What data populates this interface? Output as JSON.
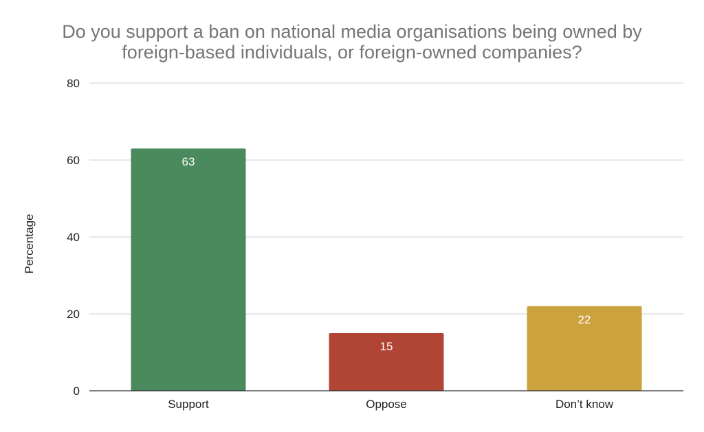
{
  "chart_data": {
    "type": "bar",
    "title_lines": [
      "Do you support a ban on national media organisations being owned by",
      "foreign-based individuals, or foreign-owned companies?"
    ],
    "categories": [
      "Support",
      "Oppose",
      "Don’t know"
    ],
    "values": [
      63,
      15,
      22
    ],
    "colors": [
      "#4a8a5c",
      "#b04535",
      "#cba23d"
    ],
    "xlabel": "",
    "ylabel": "Percentage",
    "ylim": [
      0,
      80
    ],
    "yticks": [
      0,
      20,
      40,
      60,
      80
    ],
    "grid": true,
    "legend": "none",
    "data_labels": true
  }
}
